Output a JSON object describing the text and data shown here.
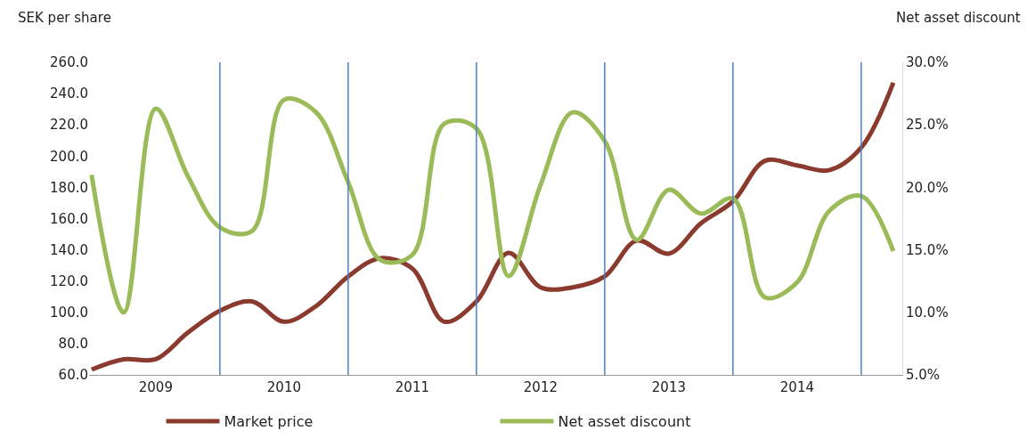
{
  "chart_data": {
    "type": "line",
    "ylabel": "SEK per share",
    "y2label": "Net asset discount",
    "x": [
      2009.0,
      2009.25,
      2009.5,
      2009.75,
      2010.0,
      2010.25,
      2010.5,
      2010.75,
      2011.0,
      2011.25,
      2011.5,
      2011.75,
      2012.0,
      2012.25,
      2012.5,
      2012.75,
      2013.0,
      2013.25,
      2013.5,
      2013.75,
      2014.0,
      2014.25,
      2014.5,
      2014.75,
      2015.0,
      2015.25
    ],
    "xlim": [
      2008.98,
      2015.32
    ],
    "xticks": [
      {
        "value": 2009.5,
        "label": "2009"
      },
      {
        "value": 2010.5,
        "label": "2010"
      },
      {
        "value": 2011.5,
        "label": "2011"
      },
      {
        "value": 2012.5,
        "label": "2012"
      },
      {
        "value": 2013.5,
        "label": "2013"
      },
      {
        "value": 2014.5,
        "label": "2014"
      }
    ],
    "ylim": [
      60,
      260
    ],
    "yticks": [
      {
        "value": 60,
        "label": "60.0"
      },
      {
        "value": 80,
        "label": "80.0"
      },
      {
        "value": 100,
        "label": "100.0"
      },
      {
        "value": 120,
        "label": "120.0"
      },
      {
        "value": 140,
        "label": "140.0"
      },
      {
        "value": 160,
        "label": "160.0"
      },
      {
        "value": 180,
        "label": "180.0"
      },
      {
        "value": 200,
        "label": "200.0"
      },
      {
        "value": 220,
        "label": "220.0"
      },
      {
        "value": 240,
        "label": "240.0"
      },
      {
        "value": 260,
        "label": "260.0"
      }
    ],
    "y2lim": [
      5,
      30
    ],
    "y2ticks": [
      {
        "value": 5,
        "label": "5.0%"
      },
      {
        "value": 10,
        "label": "10.0%"
      },
      {
        "value": 15,
        "label": "15.0%"
      },
      {
        "value": 20,
        "label": "20.0%"
      },
      {
        "value": 25,
        "label": "25.0%"
      },
      {
        "value": 30,
        "label": "30.0%"
      }
    ],
    "series": [
      {
        "name": "Market price",
        "color": "#8b3a2e",
        "values": [
          63.4,
          70,
          70,
          87,
          101,
          107,
          94,
          104,
          123,
          134.7,
          128,
          94,
          107,
          138,
          116,
          116,
          123,
          146,
          137.6,
          157,
          171,
          197,
          194,
          191,
          205.5,
          247
        ]
      },
      {
        "name": "Net asset discount",
        "color": "#9bbb59",
        "axis": "y2",
        "values": [
          21.0,
          10.0,
          26.3,
          20.9,
          16.8,
          16.5,
          27.0,
          26.0,
          20.4,
          14.2,
          14.6,
          25.1,
          24.7,
          12.9,
          20.2,
          26.0,
          23.7,
          15.8,
          19.8,
          17.9,
          19.1,
          11.2,
          12.4,
          18.1,
          19.3,
          14.9
        ]
      }
    ],
    "ref_lines": [
      {
        "axis": "x",
        "value": 2010,
        "color": "#4f81bd"
      },
      {
        "axis": "x",
        "value": 2011,
        "color": "#4f81bd"
      },
      {
        "axis": "x",
        "value": 2012,
        "color": "#4f81bd"
      },
      {
        "axis": "x",
        "value": 2013,
        "color": "#4f81bd"
      },
      {
        "axis": "x",
        "value": 2014,
        "color": "#4f81bd"
      },
      {
        "axis": "x",
        "value": 2015,
        "color": "#4f81bd"
      }
    ],
    "legend": "bottom",
    "marker": "none",
    "line_style": "solid"
  }
}
